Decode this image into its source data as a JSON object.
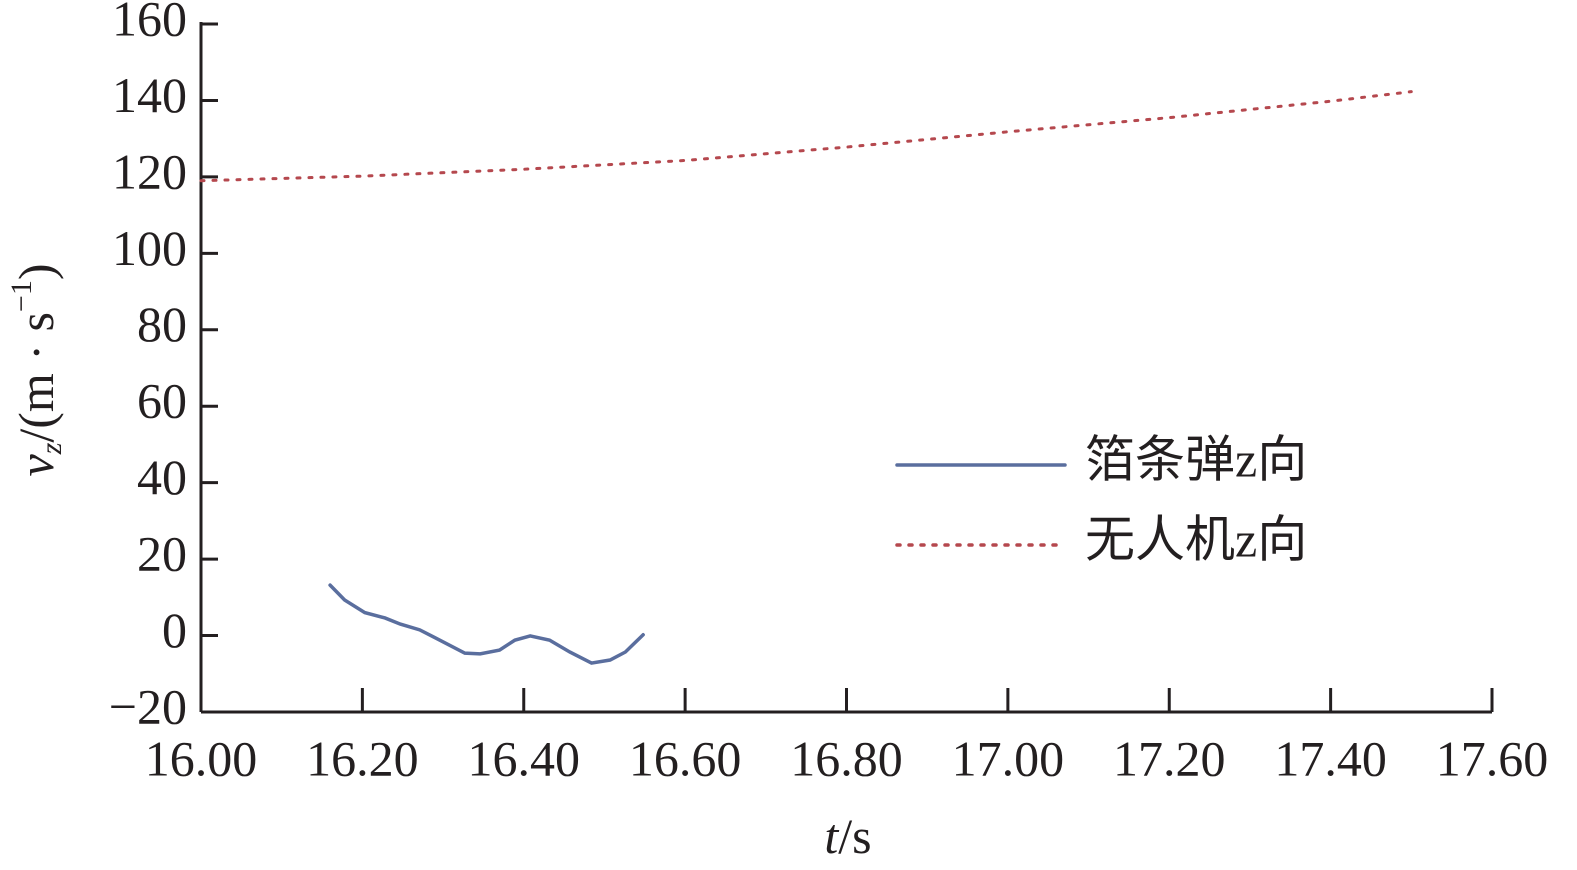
{
  "chart_data": {
    "type": "line",
    "x_label": {
      "var": "t",
      "unit": "/s"
    },
    "y_label": {
      "var": "v",
      "sub": "z",
      "unit": "/(m · s",
      "sup": "−1",
      "close": ")"
    },
    "xlim": [
      16.0,
      17.6
    ],
    "xticks": [
      {
        "value": 16.0,
        "label": "16.00"
      },
      {
        "value": 16.2,
        "label": "16.20"
      },
      {
        "value": 16.4,
        "label": "16.40"
      },
      {
        "value": 16.6,
        "label": "16.60"
      },
      {
        "value": 16.8,
        "label": "16.80"
      },
      {
        "value": 17.0,
        "label": "17.00"
      },
      {
        "value": 17.2,
        "label": "17.20"
      },
      {
        "value": 17.4,
        "label": "17.40"
      },
      {
        "value": 17.6,
        "label": "17.60"
      }
    ],
    "ylim": [
      -20,
      160
    ],
    "yticks": [
      {
        "value": -20,
        "label": "−20"
      },
      0,
      20,
      40,
      60,
      80,
      100,
      120,
      140,
      160
    ],
    "legend": "center right",
    "series": [
      {
        "name": "箔条弹z向",
        "color": "#5a6e9e",
        "style": "solid",
        "x": [
          16.16,
          16.178,
          16.203,
          16.228,
          16.247,
          16.271,
          16.296,
          16.327,
          16.346,
          16.37,
          16.389,
          16.408,
          16.432,
          16.457,
          16.484,
          16.507,
          16.526,
          16.548
        ],
        "values": [
          13.2,
          9.3,
          6.0,
          4.6,
          3.0,
          1.5,
          -1.2,
          -4.6,
          -4.8,
          -3.8,
          -1.2,
          -0.1,
          -1.2,
          -4.3,
          -7.2,
          -6.4,
          -4.3,
          0.2
        ]
      },
      {
        "name": "无人机z向",
        "color": "#b5484e",
        "style": "dotted",
        "x": [
          16.0,
          16.2,
          16.4,
          16.6,
          16.8,
          17.0,
          17.2,
          17.4,
          17.5
        ],
        "values": [
          119.0,
          120.2,
          122.0,
          124.3,
          127.8,
          131.8,
          135.5,
          139.8,
          142.3
        ]
      }
    ]
  }
}
